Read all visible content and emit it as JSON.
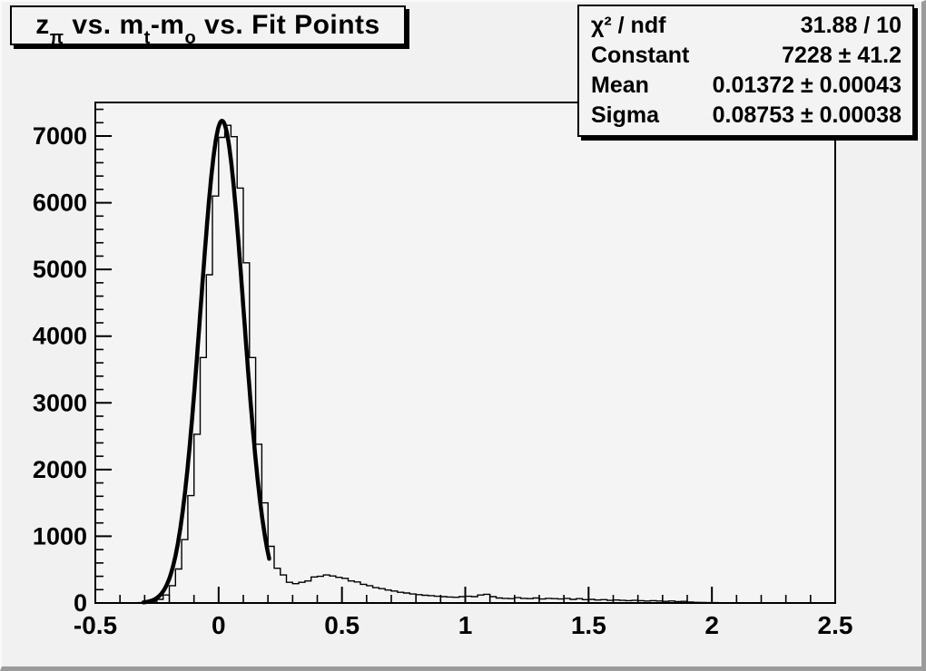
{
  "colors": {
    "canvas_bg": "#f1f1f1",
    "frame_bg": "#f4f4f4",
    "pave_fill": "#f3f3f3",
    "line_color": "#000000",
    "bevel_dark": "#9b9b9b",
    "bevel_light": "#fafafa"
  },
  "title": {
    "t1": "z",
    "s1": "π",
    "t2": " vs. m",
    "s2": "t",
    "t3": "-m",
    "s3": "o",
    "t4": " vs. Fit Points"
  },
  "stats": {
    "rows": [
      {
        "label": "χ² / ndf",
        "value": "31.88 / 10"
      },
      {
        "label": "Constant",
        "value": "7228 ± 41.2"
      },
      {
        "label": "Mean",
        "value": "0.01372 ± 0.00043"
      },
      {
        "label": "Sigma",
        "value": "0.08753 ± 0.00038"
      }
    ]
  },
  "chart_data": {
    "type": "bar",
    "subtype": "histogram-with-gaussian-fit",
    "title": "z_pi vs. m_t-m_o vs. Fit Points",
    "xlabel": "",
    "ylabel": "",
    "xlim": [
      -0.5,
      2.5
    ],
    "ylim": [
      0,
      7503
    ],
    "grid": false,
    "legend": "none",
    "bin_start": -0.5,
    "bin_width": 0.025,
    "bins": [
      0,
      0,
      0,
      0,
      0,
      0,
      2,
      5,
      12,
      25,
      55,
      120,
      260,
      510,
      950,
      1610,
      2530,
      3680,
      4920,
      6100,
      6980,
      7160,
      6990,
      6220,
      5100,
      3680,
      2380,
      1500,
      850,
      520,
      420,
      310,
      290,
      310,
      330,
      390,
      400,
      420,
      405,
      385,
      370,
      330,
      315,
      280,
      260,
      230,
      215,
      195,
      180,
      160,
      150,
      135,
      125,
      115,
      110,
      100,
      95,
      90,
      85,
      95,
      100,
      95,
      120,
      130,
      95,
      75,
      70,
      65,
      80,
      70,
      65,
      75,
      60,
      70,
      65,
      60,
      70,
      55,
      65,
      50,
      55,
      45,
      50,
      40,
      45,
      40,
      35,
      40,
      35,
      30,
      35,
      30,
      25,
      30,
      20,
      25,
      15,
      10,
      8,
      5,
      5,
      0,
      0,
      0,
      0,
      0,
      0,
      0,
      0,
      0,
      0,
      0,
      0,
      0,
      0,
      0,
      0,
      0,
      0,
      0
    ],
    "fit": {
      "type": "gaussian",
      "constant": 7228,
      "constant_err": 41.2,
      "mean": 0.01372,
      "mean_err": 0.00043,
      "sigma": 0.08753,
      "sigma_err": 0.00038,
      "chi2": 31.88,
      "ndf": 10,
      "draw_range": [
        -0.305,
        0.205
      ]
    },
    "xticks": {
      "major": [
        {
          "v": -0.5,
          "label": "-0.5"
        },
        {
          "v": 0,
          "label": "0"
        },
        {
          "v": 0.5,
          "label": "0.5"
        },
        {
          "v": 1,
          "label": "1"
        },
        {
          "v": 1.5,
          "label": "1.5"
        },
        {
          "v": 2,
          "label": "2"
        },
        {
          "v": 2.5,
          "label": "2.5"
        }
      ],
      "minor_step": 0.1
    },
    "yticks": {
      "major": [
        {
          "v": 0,
          "label": "0"
        },
        {
          "v": 1000,
          "label": "1000"
        },
        {
          "v": 2000,
          "label": "2000"
        },
        {
          "v": 3000,
          "label": "3000"
        },
        {
          "v": 4000,
          "label": "4000"
        },
        {
          "v": 5000,
          "label": "5000"
        },
        {
          "v": 6000,
          "label": "6000"
        },
        {
          "v": 7000,
          "label": "7000"
        }
      ],
      "minor_step": 200
    }
  }
}
